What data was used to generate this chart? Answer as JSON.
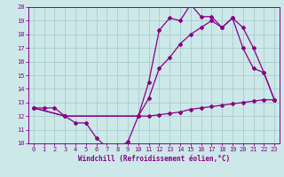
{
  "title": "",
  "xlabel": "Windchill (Refroidissement éolien,°C)",
  "ylabel": "",
  "bg_color": "#cce8e8",
  "grid_color": "#aacccc",
  "line_color": "#880088",
  "xlim": [
    -0.5,
    23.5
  ],
  "ylim": [
    10,
    20
  ],
  "xticks": [
    0,
    1,
    2,
    3,
    4,
    5,
    6,
    7,
    8,
    9,
    10,
    11,
    12,
    13,
    14,
    15,
    16,
    17,
    18,
    19,
    20,
    21,
    22,
    23
  ],
  "yticks": [
    10,
    11,
    12,
    13,
    14,
    15,
    16,
    17,
    18,
    19,
    20
  ],
  "line1_x": [
    0,
    1,
    2,
    3,
    4,
    5,
    6,
    7,
    8,
    9,
    10,
    11,
    12,
    13,
    14,
    15,
    16,
    17,
    18,
    19,
    20,
    21,
    22,
    23
  ],
  "line1_y": [
    12.6,
    12.6,
    12.6,
    12.0,
    11.5,
    11.5,
    10.4,
    9.7,
    9.7,
    10.1,
    12.0,
    12.0,
    12.1,
    12.2,
    12.3,
    12.5,
    12.6,
    12.7,
    12.8,
    12.9,
    13.0,
    13.1,
    13.2,
    13.2
  ],
  "line2_x": [
    0,
    3,
    10,
    11,
    12,
    13,
    14,
    15,
    16,
    17,
    18,
    19,
    20,
    21,
    22,
    23
  ],
  "line2_y": [
    12.6,
    12.0,
    12.0,
    14.5,
    18.3,
    19.2,
    19.0,
    20.2,
    19.3,
    19.3,
    18.5,
    19.2,
    17.0,
    15.5,
    15.2,
    13.2
  ],
  "line3_x": [
    0,
    3,
    10,
    11,
    12,
    13,
    14,
    15,
    16,
    17,
    18,
    19,
    20,
    21,
    22,
    23
  ],
  "line3_y": [
    12.6,
    12.0,
    12.0,
    13.3,
    15.5,
    16.3,
    17.3,
    18.0,
    18.5,
    19.0,
    18.5,
    19.2,
    18.5,
    17.0,
    15.2,
    13.2
  ],
  "xlabel_fontsize": 5.5,
  "tick_fontsize": 5.0,
  "marker_size": 2.0,
  "line_width": 0.9
}
